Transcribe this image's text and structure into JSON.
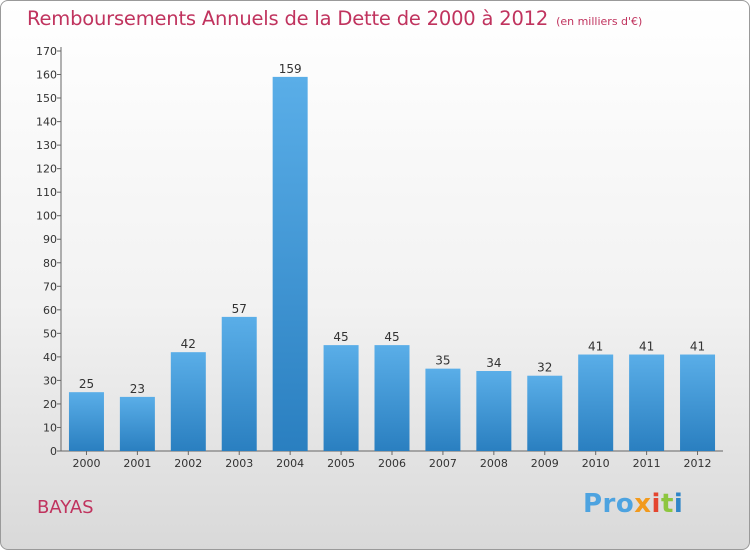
{
  "title": "Remboursements Annuels de la Dette de 2000 à 2012",
  "subtitle": "(en milliers d'€)",
  "commune": "BAYAS",
  "logo": {
    "p1": "Pro",
    "p2": "x",
    "p3": "i",
    "p4": "t",
    "p5": "i"
  },
  "colors": {
    "title": "#c0335e",
    "bar_top": "#5aaee8",
    "bar_bottom": "#2a7fc0"
  },
  "chart_data": {
    "type": "bar",
    "categories": [
      "2000",
      "2001",
      "2002",
      "2003",
      "2004",
      "2005",
      "2006",
      "2007",
      "2008",
      "2009",
      "2010",
      "2011",
      "2012"
    ],
    "values": [
      25,
      23,
      42,
      57,
      159,
      45,
      45,
      35,
      34,
      32,
      41,
      41,
      41
    ],
    "ylim": [
      0,
      170
    ],
    "yticks": [
      0,
      10,
      20,
      30,
      40,
      50,
      60,
      70,
      80,
      90,
      100,
      110,
      120,
      130,
      140,
      150,
      160,
      170
    ],
    "grid": false
  }
}
